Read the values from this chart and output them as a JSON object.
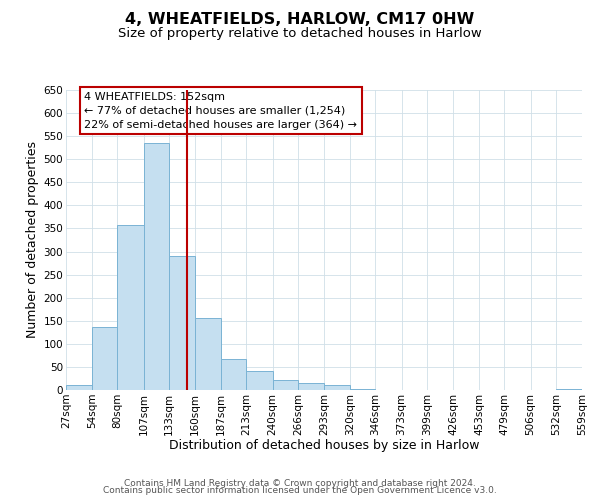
{
  "title": "4, WHEATFIELDS, HARLOW, CM17 0HW",
  "subtitle": "Size of property relative to detached houses in Harlow",
  "xlabel": "Distribution of detached houses by size in Harlow",
  "ylabel": "Number of detached properties",
  "bar_color": "#c5dff0",
  "bar_edge_color": "#7ab3d4",
  "background_color": "#ffffff",
  "grid_color": "#d0dfe8",
  "vline_x": 152,
  "vline_color": "#bb0000",
  "annotation_text": "4 WHEATFIELDS: 152sqm\n← 77% of detached houses are smaller (1,254)\n22% of semi-detached houses are larger (364) →",
  "annotation_box_color": "#ffffff",
  "annotation_box_edge": "#bb0000",
  "bin_edges": [
    27,
    54,
    80,
    107,
    133,
    160,
    187,
    213,
    240,
    266,
    293,
    320,
    346,
    373,
    399,
    426,
    453,
    479,
    506,
    532,
    559
  ],
  "bar_heights": [
    10,
    137,
    358,
    535,
    291,
    157,
    67,
    41,
    22,
    15,
    10,
    3,
    0,
    0,
    0,
    1,
    0,
    0,
    0,
    2
  ],
  "ylim": [
    0,
    650
  ],
  "yticks": [
    0,
    50,
    100,
    150,
    200,
    250,
    300,
    350,
    400,
    450,
    500,
    550,
    600,
    650
  ],
  "footer_line1": "Contains HM Land Registry data © Crown copyright and database right 2024.",
  "footer_line2": "Contains public sector information licensed under the Open Government Licence v3.0.",
  "title_fontsize": 11.5,
  "subtitle_fontsize": 9.5,
  "axis_label_fontsize": 9,
  "tick_fontsize": 7.5,
  "annotation_fontsize": 8,
  "footer_fontsize": 6.5
}
